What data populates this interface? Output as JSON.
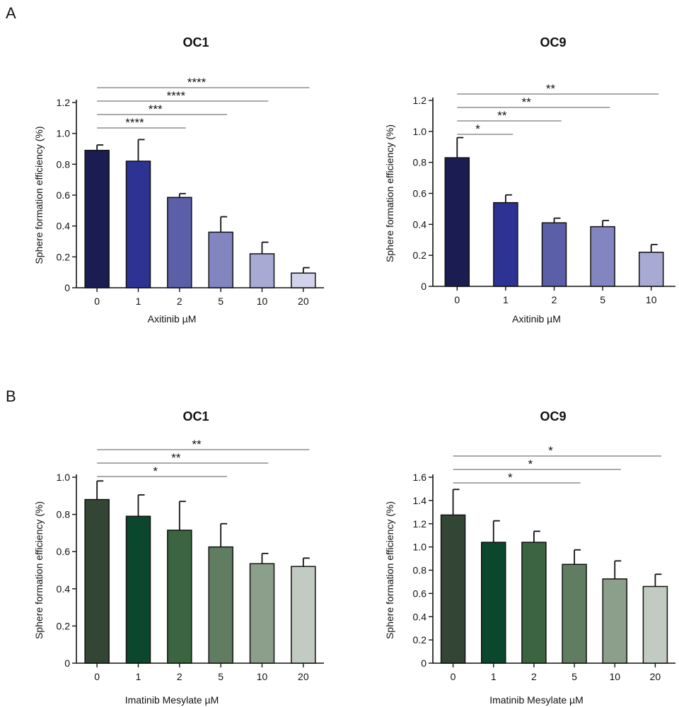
{
  "panels": [
    {
      "letter": "A"
    },
    {
      "letter": "B"
    }
  ],
  "chart_data": [
    {
      "type": "bar",
      "title": "OC1",
      "xlabel": "Axitinib µM",
      "ylabel": "Sphere formation efficiency (%)",
      "categories": [
        "0",
        "1",
        "2",
        "5",
        "10",
        "20"
      ],
      "values": [
        0.89,
        0.82,
        0.585,
        0.36,
        0.22,
        0.095
      ],
      "errors": [
        0.035,
        0.14,
        0.025,
        0.1,
        0.075,
        0.035
      ],
      "colors": [
        "#1b1d52",
        "#2c3393",
        "#5a5fa8",
        "#8285c0",
        "#a8aad4",
        "#d2d3ea"
      ],
      "ylim": [
        0,
        1.2
      ],
      "yticks": [
        0,
        0.2,
        0.4,
        0.6,
        0.8,
        1.0,
        1.2
      ],
      "ytick_labels": [
        "0",
        "0.2",
        "0.4",
        "0.6",
        "0.8",
        "1.0",
        "1.2"
      ],
      "significance": [
        {
          "from": "0",
          "to": "2",
          "label": "****"
        },
        {
          "from": "0",
          "to": "5",
          "label": "***"
        },
        {
          "from": "0",
          "to": "10",
          "label": "****"
        },
        {
          "from": "0",
          "to": "20",
          "label": "****"
        }
      ]
    },
    {
      "type": "bar",
      "title": "OC9",
      "xlabel": "Axitinib µM",
      "ylabel": "Sphere formation efficiency (%)",
      "categories": [
        "0",
        "1",
        "2",
        "5",
        "10"
      ],
      "values": [
        0.83,
        0.54,
        0.41,
        0.385,
        0.22
      ],
      "errors": [
        0.13,
        0.05,
        0.03,
        0.04,
        0.05
      ],
      "colors": [
        "#1b1d52",
        "#2c3393",
        "#5a5fa8",
        "#8285c0",
        "#a8aad4"
      ],
      "ylim": [
        0,
        1.2
      ],
      "yticks": [
        0,
        0.2,
        0.4,
        0.6,
        0.8,
        1.0,
        1.2
      ],
      "ytick_labels": [
        "0",
        "0.2",
        "0.4",
        "0.6",
        "0.8",
        "1.0",
        "1.2"
      ],
      "significance": [
        {
          "from": "0",
          "to": "1",
          "label": "*"
        },
        {
          "from": "0",
          "to": "2",
          "label": "**"
        },
        {
          "from": "0",
          "to": "5",
          "label": "**"
        },
        {
          "from": "0",
          "to": "10",
          "label": "**"
        }
      ]
    },
    {
      "type": "bar",
      "title": "OC1",
      "xlabel": "Imatinib Mesylate µM",
      "ylabel": "Sphere formation efficiency (%)",
      "categories": [
        "0",
        "1",
        "2",
        "5",
        "10",
        "20"
      ],
      "values": [
        0.88,
        0.79,
        0.715,
        0.625,
        0.535,
        0.52
      ],
      "errors": [
        0.1,
        0.115,
        0.155,
        0.125,
        0.055,
        0.045
      ],
      "colors": [
        "#334636",
        "#0b472c",
        "#3b6441",
        "#617d61",
        "#8c9f8b",
        "#c2cbc1"
      ],
      "ylim": [
        0,
        1.0
      ],
      "yticks": [
        0,
        0.2,
        0.4,
        0.6,
        0.8,
        1.0
      ],
      "ytick_labels": [
        "0",
        "0.2",
        "0.4",
        "0.6",
        "0.8",
        "1.0"
      ],
      "significance": [
        {
          "from": "0",
          "to": "5",
          "label": "*"
        },
        {
          "from": "0",
          "to": "10",
          "label": "**"
        },
        {
          "from": "0",
          "to": "20",
          "label": "**"
        }
      ]
    },
    {
      "type": "bar",
      "title": "OC9",
      "xlabel": "Imatinib Mesylate µM",
      "ylabel": "Sphere formation efficiency (%)",
      "categories": [
        "0",
        "1",
        "2",
        "5",
        "10",
        "20"
      ],
      "values": [
        1.275,
        1.04,
        1.04,
        0.85,
        0.725,
        0.66
      ],
      "errors": [
        0.22,
        0.185,
        0.095,
        0.125,
        0.155,
        0.105
      ],
      "colors": [
        "#334636",
        "#0b472c",
        "#3b6441",
        "#617d61",
        "#8c9f8b",
        "#c2cbc1"
      ],
      "ylim": [
        0,
        1.6
      ],
      "yticks": [
        0,
        0.2,
        0.4,
        0.6,
        0.8,
        1.0,
        1.2,
        1.4,
        1.6
      ],
      "ytick_labels": [
        "0",
        "0.2",
        "0.4",
        "0.6",
        "0.8",
        "1.0",
        "1.2",
        "1.4",
        "1.6"
      ],
      "significance": [
        {
          "from": "0",
          "to": "5",
          "label": "*"
        },
        {
          "from": "0",
          "to": "10",
          "label": "*"
        },
        {
          "from": "0",
          "to": "20",
          "label": "*"
        }
      ]
    }
  ]
}
